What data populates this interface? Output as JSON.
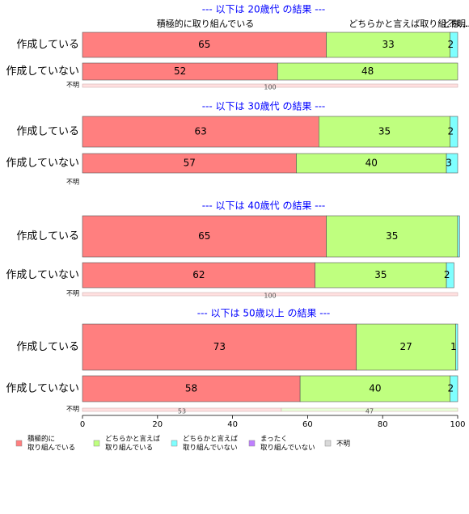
{
  "chart_data": {
    "type": "bar",
    "orientation": "horizontal",
    "stacked": true,
    "percent": true,
    "xlim": [
      0,
      100
    ],
    "x_ticks": [
      0,
      20,
      40,
      60,
      80,
      100
    ],
    "series": [
      {
        "name": "積極的に\n取り組んでいる",
        "color": "#ff7f7f"
      },
      {
        "name": "どちらかと言えば\n取り組んでいる",
        "color": "#bfff7f"
      },
      {
        "name": "どちらかと言えば\n取り組んでいない",
        "color": "#7fffff"
      },
      {
        "name": "まったく\n取り組んでいない",
        "color": "#bf7fff"
      },
      {
        "name": "不明",
        "color": "#d9d9d9"
      }
    ],
    "top_segment_labels": [
      "積極的に取り組んでいる",
      "どちらかと言えば取り組...",
      "どち...",
      "ま...",
      "不明"
    ],
    "groups": [
      {
        "title": "--- 以下は 20歳代 の結果 ---",
        "rows": [
          {
            "label": "作成している",
            "values": [
              65,
              33,
              2,
              0,
              0
            ],
            "labels": [
              "65",
              "33",
              "2",
              "",
              ""
            ]
          },
          {
            "label": "作成していない",
            "values": [
              52,
              48,
              0,
              0,
              0
            ],
            "labels": [
              "52",
              "48",
              "",
              "",
              ""
            ]
          },
          {
            "label": "不明",
            "small": true,
            "values": [
              100,
              0,
              0,
              0,
              0
            ],
            "labels": [
              "100",
              "",
              "",
              "",
              ""
            ]
          }
        ]
      },
      {
        "title": "--- 以下は 30歳代 の結果 ---",
        "rows": [
          {
            "label": "作成している",
            "values": [
              63,
              35,
              2,
              0,
              0
            ],
            "labels": [
              "63",
              "35",
              "2",
              "",
              ""
            ]
          },
          {
            "label": "作成していない",
            "values": [
              57,
              40,
              3,
              0,
              0
            ],
            "labels": [
              "57",
              "40",
              "3",
              "",
              ""
            ]
          },
          {
            "label": "不明",
            "small": true,
            "values": [
              0,
              0,
              0,
              0,
              0
            ],
            "labels": [
              "",
              "",
              "",
              "",
              ""
            ]
          }
        ]
      },
      {
        "title": "--- 以下は 40歳代 の結果 ---",
        "rows": [
          {
            "label": "作成している",
            "values": [
              65,
              35,
              0.5,
              0,
              0
            ],
            "labels": [
              "65",
              "35",
              "",
              "",
              ""
            ]
          },
          {
            "label": "作成していない",
            "values": [
              62,
              35,
              2,
              0,
              0
            ],
            "labels": [
              "62",
              "35",
              "2",
              "",
              ""
            ]
          },
          {
            "label": "不明",
            "small": true,
            "values": [
              100,
              0,
              0,
              0,
              0
            ],
            "labels": [
              "100",
              "",
              "",
              "",
              ""
            ]
          }
        ]
      },
      {
        "title": "--- 以下は 50歳以上 の結果 ---",
        "rows": [
          {
            "label": "作成している",
            "values": [
              73,
              26.5,
              0.5,
              0,
              0
            ],
            "labels": [
              "73",
              "27",
              "1",
              "",
              ""
            ]
          },
          {
            "label": "作成していない",
            "values": [
              58,
              40,
              2,
              0,
              0
            ],
            "labels": [
              "58",
              "40",
              "2",
              "",
              ""
            ]
          },
          {
            "label": "不明",
            "small": true,
            "values": [
              53,
              47,
              0,
              0,
              0
            ],
            "labels": [
              "53",
              "47",
              "",
              "",
              ""
            ]
          }
        ]
      }
    ]
  }
}
